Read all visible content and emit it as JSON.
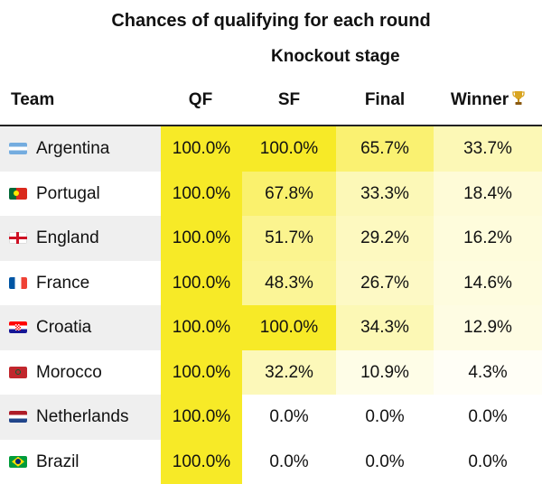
{
  "title": "Chances of qualifying for each round",
  "subtitle": "Knockout stage",
  "columns": {
    "team": "Team",
    "qf": "QF",
    "sf": "SF",
    "final": "Final",
    "winner": "Winner"
  },
  "icons": {
    "winner": "trophy-icon"
  },
  "colors": {
    "max": "#f7ea27",
    "min": "#ffffff",
    "alt_row": "#efefef"
  },
  "chart_data": {
    "type": "table",
    "title": "Chances of qualifying for each round",
    "subtitle": "Knockout stage",
    "columns": [
      "Team",
      "QF",
      "SF",
      "Final",
      "Winner"
    ],
    "rows": [
      {
        "team": "Argentina",
        "flag": "argentina-flag-icon",
        "qf": "100.0%",
        "sf": "100.0%",
        "final": "65.7%",
        "winner": "33.7%",
        "values": [
          100.0,
          100.0,
          65.7,
          33.7
        ]
      },
      {
        "team": "Portugal",
        "flag": "portugal-flag-icon",
        "qf": "100.0%",
        "sf": "67.8%",
        "final": "33.3%",
        "winner": "18.4%",
        "values": [
          100.0,
          67.8,
          33.3,
          18.4
        ]
      },
      {
        "team": "England",
        "flag": "england-flag-icon",
        "qf": "100.0%",
        "sf": "51.7%",
        "final": "29.2%",
        "winner": "16.2%",
        "values": [
          100.0,
          51.7,
          29.2,
          16.2
        ]
      },
      {
        "team": "France",
        "flag": "france-flag-icon",
        "qf": "100.0%",
        "sf": "48.3%",
        "final": "26.7%",
        "winner": "14.6%",
        "values": [
          100.0,
          48.3,
          26.7,
          14.6
        ]
      },
      {
        "team": "Croatia",
        "flag": "croatia-flag-icon",
        "qf": "100.0%",
        "sf": "100.0%",
        "final": "34.3%",
        "winner": "12.9%",
        "values": [
          100.0,
          100.0,
          34.3,
          12.9
        ]
      },
      {
        "team": "Morocco",
        "flag": "morocco-flag-icon",
        "qf": "100.0%",
        "sf": "32.2%",
        "final": "10.9%",
        "winner": "4.3%",
        "values": [
          100.0,
          32.2,
          10.9,
          4.3
        ]
      },
      {
        "team": "Netherlands",
        "flag": "netherlands-flag-icon",
        "qf": "100.0%",
        "sf": "0.0%",
        "final": "0.0%",
        "winner": "0.0%",
        "values": [
          100.0,
          0.0,
          0.0,
          0.0
        ]
      },
      {
        "team": "Brazil",
        "flag": "brazil-flag-icon",
        "qf": "100.0%",
        "sf": "0.0%",
        "final": "0.0%",
        "winner": "0.0%",
        "values": [
          100.0,
          0.0,
          0.0,
          0.0
        ]
      }
    ]
  }
}
